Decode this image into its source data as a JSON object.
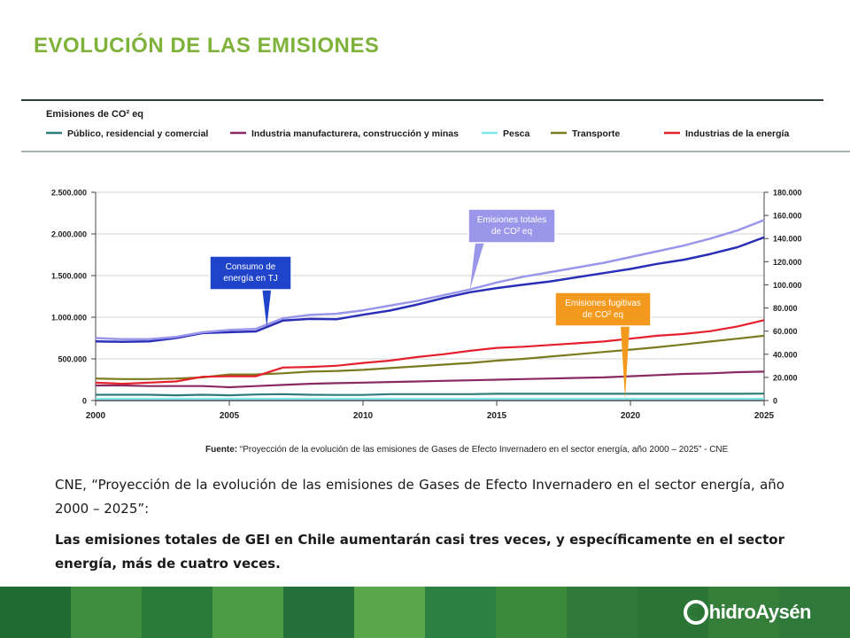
{
  "slide": {
    "title": "EVOLUCIÓN DE LAS EMISIONES",
    "title_color": "#7fb23b"
  },
  "chart_data": {
    "type": "line",
    "title": "Emisiones de CO² eq",
    "x": [
      2000,
      2001,
      2002,
      2003,
      2004,
      2005,
      2006,
      2007,
      2008,
      2009,
      2010,
      2011,
      2012,
      2013,
      2014,
      2015,
      2016,
      2017,
      2018,
      2019,
      2020,
      2021,
      2022,
      2023,
      2024,
      2025
    ],
    "xlim": [
      2000,
      2025
    ],
    "x_ticks": [
      "2000",
      "2005",
      "2010",
      "2015",
      "2020",
      "2025"
    ],
    "x_tick_values": [
      2000,
      2005,
      2010,
      2015,
      2020,
      2025
    ],
    "ylim": [
      0,
      2500000
    ],
    "y_ticks": [
      "2.500.000",
      "2.000.000",
      "1.500.000",
      "1.000.000",
      "500.000",
      "0"
    ],
    "y_tick_values": [
      2500000,
      2000000,
      1500000,
      1000000,
      500000,
      0
    ],
    "y2lim": [
      0,
      180000
    ],
    "y2_ticks": [
      "180.000",
      "160.000",
      "140.000",
      "120.000",
      "100.000",
      "80.000",
      "60.000",
      "40.000",
      "20.000",
      "0"
    ],
    "y2_tick_values": [
      180000,
      160000,
      140000,
      120000,
      100000,
      80000,
      60000,
      40000,
      20000,
      0
    ],
    "grid": "horizontal",
    "legend_position": "top",
    "series": [
      {
        "name": "Público, residencial y comercial",
        "color": "#2e7d78",
        "axis": "right",
        "values": [
          5000,
          5000,
          5000,
          4500,
          5000,
          4500,
          5200,
          5500,
          5000,
          4800,
          4800,
          5500,
          5500,
          5500,
          5500,
          5800,
          5800,
          5800,
          5800,
          5800,
          5800,
          5800,
          5800,
          5800,
          5800,
          6000
        ]
      },
      {
        "name": "Industria manufacturera, construcción y minas",
        "color": "#8b2a62",
        "axis": "right",
        "values": [
          13000,
          13000,
          12500,
          12500,
          12500,
          11500,
          12500,
          13500,
          14500,
          15000,
          15500,
          16000,
          16500,
          17000,
          17500,
          18000,
          18500,
          19000,
          19500,
          20000,
          21000,
          22000,
          23000,
          23500,
          24500,
          25000
        ]
      },
      {
        "name": "Pesca",
        "color": "#7ee8f0",
        "axis": "right",
        "values": [
          1500,
          1500,
          1500,
          1500,
          1500,
          1500,
          1500,
          1500,
          1500,
          1500,
          1500,
          1500,
          1500,
          1500,
          1500,
          1500,
          1500,
          1500,
          1500,
          1500,
          1500,
          1500,
          1500,
          1500,
          1500,
          1500
        ]
      },
      {
        "name": "Transporte",
        "color": "#7c7a1e",
        "axis": "right",
        "values": [
          19000,
          18500,
          18500,
          19000,
          20000,
          22500,
          22500,
          23500,
          25000,
          25500,
          26500,
          28000,
          29500,
          31000,
          32500,
          34500,
          36000,
          38000,
          40000,
          42000,
          44000,
          46000,
          48500,
          51000,
          53500,
          56000
        ]
      },
      {
        "name": "Industrias de la energía",
        "color": "#e3202b",
        "axis": "right",
        "values": [
          15500,
          14500,
          15500,
          16500,
          20500,
          21000,
          21000,
          28500,
          29000,
          30000,
          32500,
          34500,
          37500,
          40000,
          43000,
          45500,
          46500,
          48000,
          49500,
          51000,
          53500,
          56000,
          57500,
          60000,
          64000,
          69500
        ]
      },
      {
        "name": "Consumo de energía en TJ",
        "color": "#2a2fb8",
        "axis": "left",
        "values": [
          710000,
          705000,
          710000,
          750000,
          810000,
          820000,
          830000,
          960000,
          980000,
          975000,
          1030000,
          1080000,
          1150000,
          1230000,
          1300000,
          1350000,
          1390000,
          1430000,
          1480000,
          1530000,
          1580000,
          1640000,
          1690000,
          1760000,
          1840000,
          1960000
        ]
      },
      {
        "name": "Emisiones totales de CO² eq",
        "color": "#9a97ea",
        "axis": "right",
        "values": [
          54000,
          53000,
          53000,
          55000,
          59000,
          61000,
          62000,
          71000,
          74000,
          75000,
          78000,
          82000,
          86000,
          91000,
          96000,
          102000,
          107000,
          111000,
          115000,
          119000,
          124000,
          129000,
          134000,
          140000,
          147000,
          156000
        ]
      }
    ],
    "legend": [
      {
        "label": "Público, residencial y comercial",
        "color": "#2e7d78"
      },
      {
        "label": "Industria manufacturera, construcción y minas",
        "color": "#8b2a62"
      },
      {
        "label": "Pesca",
        "color": "#7ee8f0"
      },
      {
        "label": "Transporte",
        "color": "#7c7a1e"
      },
      {
        "label": "Industrias de la energía",
        "color": "#e3202b"
      }
    ],
    "annotations": [
      {
        "lines": [
          "Emisiones totales",
          "de CO² eq"
        ],
        "color": "#9a97ea",
        "anchor_x": 2014,
        "anchor_series": "Emisiones totales de CO² eq"
      },
      {
        "lines": [
          "Consumo de",
          "energía en TJ"
        ],
        "color": "#1f44c9",
        "anchor_x": 2006.4,
        "anchor_series": "Consumo de energía en TJ"
      },
      {
        "lines": [
          "Emisiones fugitivas",
          "de CO² eq"
        ],
        "color": "#f39a1e",
        "anchor_x": 2019.8,
        "anchor_series": "Pesca"
      }
    ]
  },
  "source": {
    "label": "Fuente:",
    "text": " “Proyección de la evolución de las emisiones de Gases de Efecto Invernadero en el sector energía, año 2000 – 2025” - CNE"
  },
  "body": {
    "paragraph1": "CNE, “Proyección de la evolución de las emisiones de Gases de Efecto Invernadero en el sector energía, año 2000 – 2025”:",
    "paragraph2": "Las emisiones totales de GEI en Chile aumentarán casi tres veces, y específicamente en el sector energía, más de cuatro veces."
  },
  "footer": {
    "logo_part1": "hidro",
    "logo_part2": "Aysén",
    "tiles": [
      "#1f6b31",
      "#3c8e3e",
      "#2a7a38",
      "#4a9d44",
      "#23703a",
      "#5aa64a",
      "#2d8040",
      "#3a8a3c",
      "#2f7a3a",
      "#2a7434",
      "#357f3b",
      "#2f7a3a"
    ]
  }
}
